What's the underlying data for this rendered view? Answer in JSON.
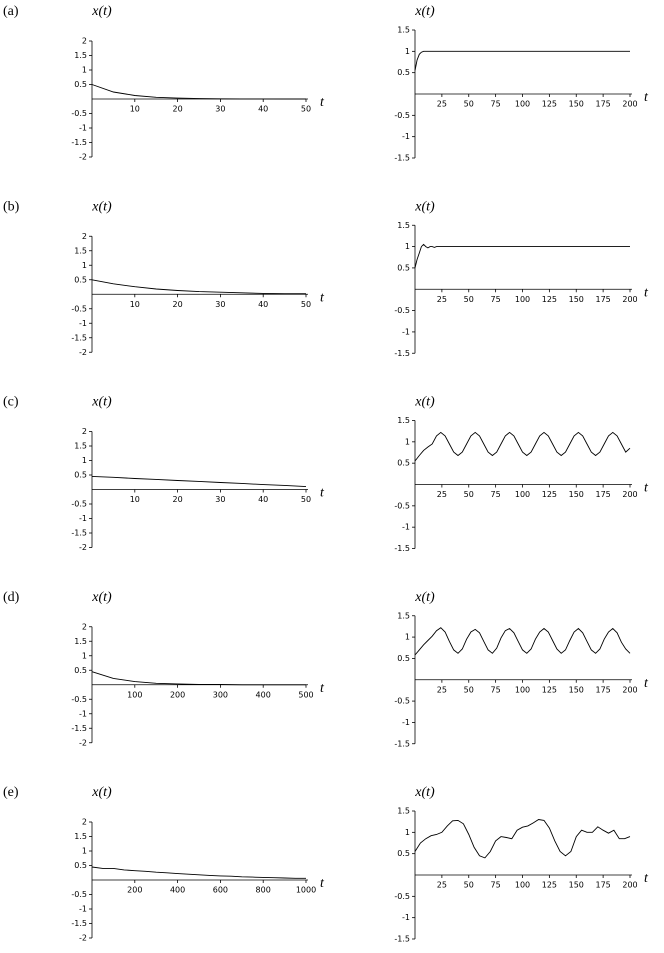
{
  "chart_data": [
    {
      "type": "line",
      "panel": "(a)",
      "ylabel": "x(t)",
      "xlabel": "t",
      "color": "#000000",
      "x": [
        0,
        5,
        10,
        15,
        20,
        25,
        30,
        35,
        40,
        45,
        50
      ],
      "values": [
        0.5,
        0.24,
        0.12,
        0.06,
        0.03,
        0.014,
        0.007,
        0.003,
        0.002,
        0.001,
        0
      ],
      "xlim": [
        0,
        50
      ],
      "ylim": [
        -2,
        2
      ],
      "xticks": [
        10,
        20,
        30,
        40,
        50
      ],
      "yticks": [
        -2,
        -1.5,
        -1,
        -0.5,
        0.5,
        1,
        1.5,
        2
      ]
    },
    {
      "type": "line",
      "ylabel": "x(t)",
      "xlabel": "t",
      "color": "#000000",
      "x": [
        0,
        2,
        4,
        6,
        8,
        10,
        25,
        50,
        75,
        100,
        125,
        150,
        175,
        200
      ],
      "values": [
        0.55,
        0.8,
        0.93,
        0.98,
        1,
        1,
        1,
        1,
        1,
        1,
        1,
        1,
        1,
        1
      ],
      "xlim": [
        0,
        200
      ],
      "ylim": [
        -1.5,
        1.5
      ],
      "xticks": [
        25,
        50,
        75,
        100,
        125,
        150,
        175,
        200
      ],
      "yticks": [
        -1.5,
        -1,
        -0.5,
        0.5,
        1,
        1.5
      ]
    },
    {
      "type": "line",
      "panel": "(b)",
      "ylabel": "x(t)",
      "xlabel": "t",
      "color": "#000000",
      "x": [
        0,
        5,
        10,
        15,
        20,
        25,
        30,
        35,
        40,
        45,
        50
      ],
      "values": [
        0.5,
        0.36,
        0.26,
        0.18,
        0.13,
        0.09,
        0.07,
        0.05,
        0.03,
        0.02,
        0.02
      ],
      "xlim": [
        0,
        50
      ],
      "ylim": [
        -2,
        2
      ],
      "xticks": [
        10,
        20,
        30,
        40,
        50
      ],
      "yticks": [
        -2,
        -1.5,
        -1,
        -0.5,
        0.5,
        1,
        1.5,
        2
      ]
    },
    {
      "type": "line",
      "ylabel": "x(t)",
      "xlabel": "t",
      "color": "#000000",
      "x": [
        0,
        2,
        4,
        6,
        8,
        10,
        12,
        14,
        16,
        18,
        20,
        25,
        30,
        50,
        75,
        100,
        125,
        150,
        175,
        200
      ],
      "values": [
        0.5,
        0.7,
        0.85,
        1.0,
        1.05,
        1.0,
        0.97,
        1.0,
        1.0,
        0.98,
        1.0,
        1,
        1,
        1,
        1,
        1,
        1,
        1,
        1,
        1
      ],
      "xlim": [
        0,
        200
      ],
      "ylim": [
        -1.5,
        1.5
      ],
      "xticks": [
        25,
        50,
        75,
        100,
        125,
        150,
        175,
        200
      ],
      "yticks": [
        -1.5,
        -1,
        -0.5,
        0.5,
        1,
        1.5
      ]
    },
    {
      "type": "line",
      "panel": "(c)",
      "ylabel": "x(t)",
      "xlabel": "t",
      "color": "#000000",
      "x": [
        0,
        5,
        10,
        15,
        20,
        25,
        30,
        35,
        40,
        45,
        50
      ],
      "values": [
        0.45,
        0.42,
        0.38,
        0.35,
        0.31,
        0.28,
        0.24,
        0.21,
        0.17,
        0.14,
        0.1
      ],
      "xlim": [
        0,
        50
      ],
      "ylim": [
        -2,
        2
      ],
      "xticks": [
        10,
        20,
        30,
        40,
        50
      ],
      "yticks": [
        -2,
        -1.5,
        -1,
        -0.5,
        0.5,
        1,
        1.5,
        2
      ]
    },
    {
      "type": "line",
      "ylabel": "x(t)",
      "xlabel": "t",
      "color": "#000000",
      "x": [
        0,
        4,
        8,
        12,
        16,
        20,
        24,
        28,
        32,
        36,
        40,
        44,
        48,
        52,
        56,
        60,
        64,
        68,
        72,
        76,
        80,
        84,
        88,
        92,
        96,
        100,
        104,
        108,
        112,
        116,
        120,
        124,
        128,
        132,
        136,
        140,
        144,
        148,
        152,
        156,
        160,
        164,
        168,
        172,
        176,
        180,
        184,
        188,
        192,
        196,
        200
      ],
      "values": [
        0.55,
        0.68,
        0.8,
        0.88,
        0.95,
        1.14,
        1.22,
        1.14,
        0.95,
        0.76,
        0.68,
        0.76,
        0.95,
        1.14,
        1.22,
        1.14,
        0.95,
        0.76,
        0.68,
        0.76,
        0.95,
        1.14,
        1.22,
        1.14,
        0.95,
        0.76,
        0.68,
        0.76,
        0.95,
        1.14,
        1.22,
        1.14,
        0.95,
        0.76,
        0.68,
        0.76,
        0.95,
        1.14,
        1.22,
        1.14,
        0.95,
        0.76,
        0.68,
        0.76,
        0.95,
        1.14,
        1.22,
        1.14,
        0.95,
        0.76,
        0.85
      ],
      "xlim": [
        0,
        200
      ],
      "ylim": [
        -1.5,
        1.5
      ],
      "xticks": [
        25,
        50,
        75,
        100,
        125,
        150,
        175,
        200
      ],
      "yticks": [
        -1.5,
        -1,
        -0.5,
        0.5,
        1,
        1.5
      ]
    },
    {
      "type": "line",
      "panel": "(d)",
      "ylabel": "x(t)",
      "xlabel": "t",
      "color": "#000000",
      "x": [
        0,
        50,
        100,
        150,
        200,
        250,
        300,
        350,
        400,
        450,
        500
      ],
      "values": [
        0.45,
        0.22,
        0.11,
        0.05,
        0.03,
        0.01,
        0.01,
        0,
        0,
        0,
        0
      ],
      "xlim": [
        0,
        500
      ],
      "ylim": [
        -2,
        2
      ],
      "xticks": [
        100,
        200,
        300,
        400,
        500
      ],
      "yticks": [
        -2,
        -1.5,
        -1,
        -0.5,
        0.5,
        1,
        1.5,
        2
      ]
    },
    {
      "type": "line",
      "ylabel": "x(t)",
      "xlabel": "t",
      "color": "#000000",
      "x": [
        0,
        4,
        8,
        12,
        16,
        20,
        24,
        28,
        32,
        36,
        40,
        44,
        48,
        52,
        56,
        60,
        64,
        68,
        72,
        76,
        80,
        84,
        88,
        92,
        96,
        100,
        104,
        108,
        112,
        116,
        120,
        124,
        128,
        132,
        136,
        140,
        144,
        148,
        152,
        156,
        160,
        164,
        168,
        172,
        176,
        180,
        184,
        188,
        192,
        196,
        200
      ],
      "values": [
        0.58,
        0.7,
        0.82,
        0.92,
        1.02,
        1.15,
        1.22,
        1.12,
        0.9,
        0.7,
        0.62,
        0.72,
        0.95,
        1.12,
        1.18,
        1.1,
        0.9,
        0.7,
        0.62,
        0.74,
        0.98,
        1.15,
        1.2,
        1.1,
        0.9,
        0.7,
        0.62,
        0.72,
        0.95,
        1.12,
        1.2,
        1.12,
        0.92,
        0.72,
        0.62,
        0.7,
        0.92,
        1.12,
        1.2,
        1.1,
        0.9,
        0.7,
        0.62,
        0.72,
        0.95,
        1.12,
        1.2,
        1.1,
        0.88,
        0.72,
        0.62
      ],
      "xlim": [
        0,
        200
      ],
      "ylim": [
        -1.5,
        1.5
      ],
      "xticks": [
        25,
        50,
        75,
        100,
        125,
        150,
        175,
        200
      ],
      "yticks": [
        -1.5,
        -1,
        -0.5,
        0.5,
        1,
        1.5
      ]
    },
    {
      "type": "line",
      "panel": "(e)",
      "ylabel": "x(t)",
      "xlabel": "t",
      "color": "#000000",
      "x": [
        0,
        50,
        100,
        150,
        200,
        250,
        300,
        350,
        400,
        450,
        500,
        550,
        600,
        650,
        700,
        750,
        800,
        850,
        900,
        950,
        1000
      ],
      "values": [
        0.45,
        0.4,
        0.4,
        0.35,
        0.32,
        0.3,
        0.27,
        0.25,
        0.22,
        0.2,
        0.18,
        0.16,
        0.14,
        0.13,
        0.11,
        0.1,
        0.09,
        0.08,
        0.07,
        0.06,
        0.06
      ],
      "xlim": [
        0,
        1000
      ],
      "ylim": [
        -2,
        2
      ],
      "xticks": [
        200,
        400,
        600,
        800,
        1000
      ],
      "yticks": [
        -2,
        -1.5,
        -1,
        -0.5,
        0.5,
        1,
        1.5,
        2
      ]
    },
    {
      "type": "line",
      "ylabel": "x(t)",
      "xlabel": "t",
      "color": "#000000",
      "x": [
        0,
        5,
        10,
        15,
        20,
        25,
        30,
        35,
        40,
        45,
        50,
        55,
        60,
        65,
        70,
        75,
        80,
        85,
        90,
        95,
        100,
        105,
        110,
        115,
        120,
        125,
        130,
        135,
        140,
        145,
        150,
        155,
        160,
        165,
        170,
        175,
        180,
        185,
        190,
        195,
        200
      ],
      "values": [
        0.55,
        0.75,
        0.85,
        0.92,
        0.95,
        1.0,
        1.15,
        1.27,
        1.28,
        1.2,
        0.95,
        0.65,
        0.45,
        0.4,
        0.55,
        0.8,
        0.9,
        0.88,
        0.85,
        1.05,
        1.12,
        1.15,
        1.22,
        1.3,
        1.28,
        1.1,
        0.8,
        0.55,
        0.45,
        0.55,
        0.9,
        1.05,
        1.0,
        1.0,
        1.13,
        1.05,
        0.98,
        1.05,
        0.85,
        0.85,
        0.9
      ],
      "xlim": [
        0,
        200
      ],
      "ylim": [
        -1.5,
        1.5
      ],
      "xticks": [
        25,
        50,
        75,
        100,
        125,
        150,
        175,
        200
      ],
      "yticks": [
        -1.5,
        -1,
        -0.5,
        0.5,
        1,
        1.5
      ]
    }
  ]
}
